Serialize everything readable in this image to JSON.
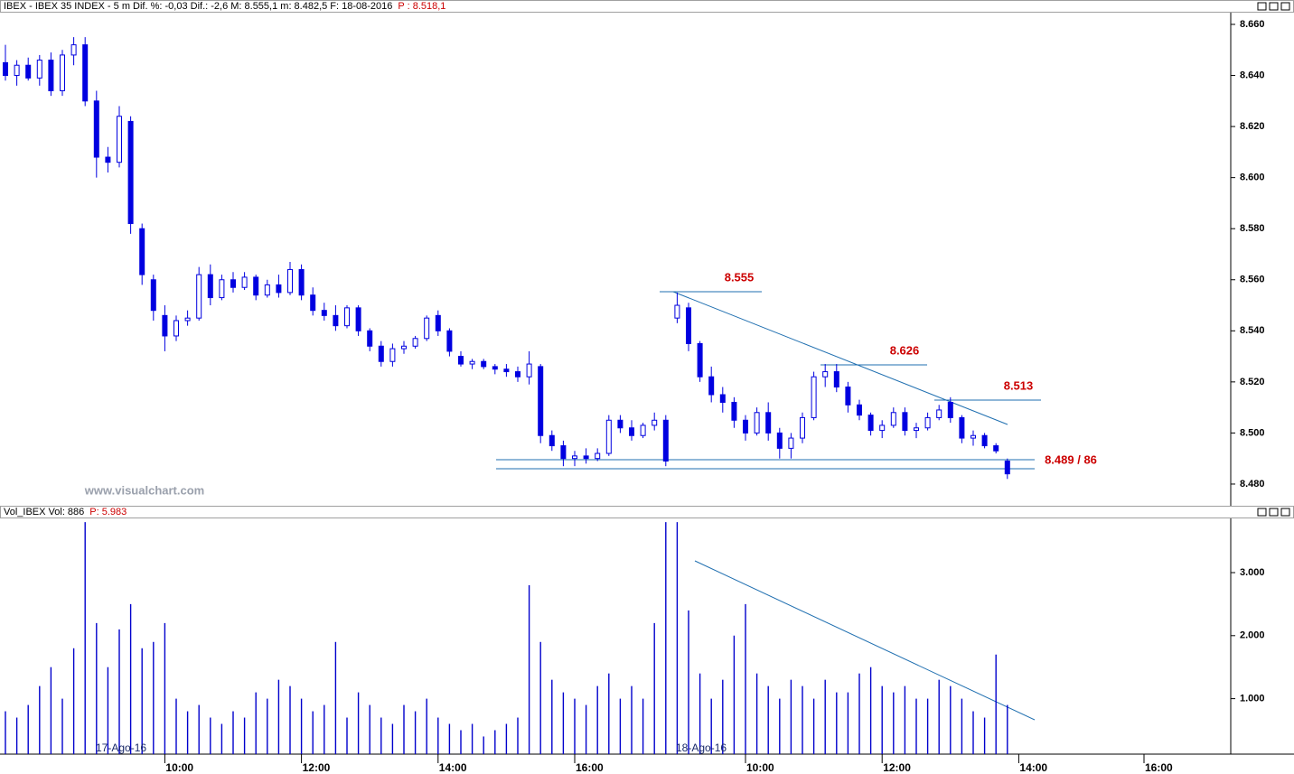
{
  "chart_data": [
    {
      "type": "candlestick",
      "title": "IBEX - IBEX 35 INDEX - 5 m  Dif. %: -0,03  Dif.: -2,6  M: 8.555,1  m: 8.482,5  F: 18-08-2016",
      "price_label": "P : 8.518,1",
      "watermark": "www.visualchart.com",
      "color": "#0000e0",
      "ylim": [
        8471.5,
        8665.3
      ],
      "yticks": [
        {
          "value": 8480,
          "label": "8.480"
        },
        {
          "value": 8500,
          "label": "8.500"
        },
        {
          "value": 8520,
          "label": "8.520"
        },
        {
          "value": 8540,
          "label": "8.540"
        },
        {
          "value": 8560,
          "label": "8.560"
        },
        {
          "value": 8580,
          "label": "8.580"
        },
        {
          "value": 8600,
          "label": "8.600"
        },
        {
          "value": 8620,
          "label": "8.620"
        },
        {
          "value": 8640,
          "label": "8.640"
        },
        {
          "value": 8660,
          "label": "8.660"
        }
      ],
      "annotations": [
        "8.555",
        "8.626",
        "8.513",
        "8.489 / 86"
      ],
      "candles": [
        [
          8645,
          8652,
          8638,
          8640
        ],
        [
          8640,
          8646,
          8636,
          8644
        ],
        [
          8644,
          8647,
          8638,
          8639
        ],
        [
          8639,
          8648,
          8636,
          8646
        ],
        [
          8646,
          8649,
          8632,
          8634
        ],
        [
          8634,
          8650,
          8632,
          8648
        ],
        [
          8648,
          8655,
          8644,
          8652
        ],
        [
          8652,
          8655,
          8628,
          8630
        ],
        [
          8630,
          8634,
          8600,
          8608
        ],
        [
          8608,
          8612,
          8602,
          8606
        ],
        [
          8606,
          8628,
          8604,
          8624
        ],
        [
          8622,
          8624,
          8578,
          8582
        ],
        [
          8580,
          8582,
          8558,
          8562
        ],
        [
          8560,
          8562,
          8544,
          8548
        ],
        [
          8546,
          8550,
          8532,
          8538
        ],
        [
          8538,
          8546,
          8536,
          8544
        ],
        [
          8544,
          8548,
          8542,
          8545
        ],
        [
          8545,
          8565,
          8544,
          8562
        ],
        [
          8562,
          8566,
          8550,
          8553
        ],
        [
          8553,
          8562,
          8552,
          8560
        ],
        [
          8560,
          8563,
          8555,
          8557
        ],
        [
          8557,
          8563,
          8556,
          8561
        ],
        [
          8561,
          8562,
          8552,
          8554
        ],
        [
          8554,
          8560,
          8553,
          8558
        ],
        [
          8558,
          8562,
          8553,
          8555
        ],
        [
          8555,
          8567,
          8554,
          8564
        ],
        [
          8564,
          8566,
          8552,
          8554
        ],
        [
          8554,
          8557,
          8546,
          8548
        ],
        [
          8548,
          8551,
          8544,
          8546
        ],
        [
          8546,
          8550,
          8540,
          8542
        ],
        [
          8542,
          8550,
          8541,
          8549
        ],
        [
          8549,
          8550,
          8538,
          8540
        ],
        [
          8540,
          8541,
          8532,
          8534
        ],
        [
          8534,
          8536,
          8526,
          8528
        ],
        [
          8528,
          8535,
          8526,
          8533
        ],
        [
          8533,
          8536,
          8531,
          8534
        ],
        [
          8534,
          8538,
          8533,
          8537
        ],
        [
          8537,
          8546,
          8536,
          8545
        ],
        [
          8546,
          8548,
          8538,
          8540
        ],
        [
          8540,
          8541,
          8530,
          8532
        ],
        [
          8530,
          8532,
          8526,
          8527
        ],
        [
          8527,
          8529,
          8525,
          8528
        ],
        [
          8528,
          8529,
          8525,
          8526
        ],
        [
          8526,
          8527,
          8523,
          8525
        ],
        [
          8525,
          8527,
          8522,
          8524
        ],
        [
          8524,
          8526,
          8520,
          8522
        ],
        [
          8522,
          8532,
          8519,
          8527
        ],
        [
          8526,
          8527,
          8496,
          8499
        ],
        [
          8499,
          8501,
          8493,
          8495
        ],
        [
          8495,
          8497,
          8487,
          8490
        ],
        [
          8490,
          8493,
          8487,
          8491
        ],
        [
          8491,
          8494,
          8488,
          8490
        ],
        [
          8490,
          8494,
          8489,
          8492
        ],
        [
          8492,
          8507,
          8491,
          8505
        ],
        [
          8505,
          8507,
          8500,
          8502
        ],
        [
          8502,
          8505,
          8497,
          8499
        ],
        [
          8499,
          8504,
          8498,
          8503
        ],
        [
          8503,
          8508,
          8501,
          8505
        ],
        [
          8505,
          8507,
          8487,
          8489
        ],
        [
          8545,
          8555,
          8543,
          8550
        ],
        [
          8549,
          8551,
          8532,
          8535
        ],
        [
          8535,
          8536,
          8520,
          8522
        ],
        [
          8522,
          8526,
          8512,
          8515
        ],
        [
          8515,
          8518,
          8508,
          8512
        ],
        [
          8512,
          8514,
          8502,
          8505
        ],
        [
          8505,
          8507,
          8497,
          8500
        ],
        [
          8500,
          8510,
          8499,
          8508
        ],
        [
          8508,
          8512,
          8497,
          8500
        ],
        [
          8500,
          8502,
          8490,
          8494
        ],
        [
          8494,
          8500,
          8490,
          8498
        ],
        [
          8498,
          8508,
          8496,
          8506
        ],
        [
          8506,
          8524,
          8505,
          8522
        ],
        [
          8522,
          8527,
          8518,
          8524
        ],
        [
          8524,
          8527,
          8516,
          8518
        ],
        [
          8518,
          8520,
          8508,
          8511
        ],
        [
          8511,
          8513,
          8505,
          8507
        ],
        [
          8507,
          8508,
          8499,
          8501
        ],
        [
          8501,
          8505,
          8498,
          8503
        ],
        [
          8503,
          8510,
          8502,
          8508
        ],
        [
          8508,
          8510,
          8499,
          8501
        ],
        [
          8501,
          8504,
          8498,
          8502
        ],
        [
          8502,
          8508,
          8501,
          8506
        ],
        [
          8506,
          8511,
          8505,
          8509
        ],
        [
          8512,
          8514,
          8504,
          8506
        ],
        [
          8506,
          8507,
          8496,
          8498
        ],
        [
          8498,
          8501,
          8495,
          8499
        ],
        [
          8499,
          8500,
          8494,
          8495
        ],
        [
          8495,
          8496,
          8492,
          8493
        ],
        [
          8489,
          8490,
          8482,
          8484
        ],
        null,
        null,
        null,
        null,
        null,
        null,
        null,
        null,
        null,
        null,
        null,
        null,
        null,
        null
      ]
    },
    {
      "type": "bar",
      "title": "Vol_IBEX Vol: 886",
      "price_label": "P: 5.983",
      "color": "#0000cc",
      "ylim": [
        120,
        3860
      ],
      "yticks": [
        {
          "value": 1000,
          "label": "1.000"
        },
        {
          "value": 2000,
          "label": "2.000"
        },
        {
          "value": 3000,
          "label": "3.000"
        }
      ],
      "annotations": [
        "17-Ago-16",
        "18-Ago-16"
      ],
      "categories": [
        null,
        null,
        null,
        null,
        null,
        null,
        null,
        null,
        null,
        null,
        null,
        null,
        null,
        null,
        "10:00",
        null,
        null,
        null,
        null,
        null,
        null,
        null,
        null,
        null,
        null,
        null,
        "12:00",
        null,
        null,
        null,
        null,
        null,
        null,
        null,
        null,
        null,
        null,
        null,
        "14:00",
        null,
        null,
        null,
        null,
        null,
        null,
        null,
        null,
        null,
        null,
        null,
        "16:00",
        null,
        null,
        null,
        null,
        null,
        null,
        null,
        null,
        null,
        null,
        null,
        null,
        null,
        null,
        "10:00",
        null,
        null,
        null,
        null,
        null,
        null,
        null,
        null,
        null,
        null,
        null,
        "12:00",
        null,
        null,
        null,
        null,
        null,
        null,
        null,
        null,
        null,
        null,
        null,
        "14:00",
        null,
        null,
        null,
        null,
        null,
        null,
        null,
        null,
        null,
        null,
        "16:00",
        null,
        null
      ],
      "values": [
        800,
        700,
        900,
        1200,
        1500,
        1000,
        1800,
        3800,
        2200,
        1500,
        2100,
        2500,
        1800,
        1900,
        2200,
        1000,
        800,
        900,
        700,
        600,
        800,
        700,
        1100,
        1000,
        1300,
        1200,
        1000,
        800,
        900,
        1900,
        700,
        1100,
        900,
        700,
        600,
        900,
        800,
        1000,
        700,
        600,
        500,
        600,
        400,
        500,
        600,
        700,
        2800,
        1900,
        1300,
        1100,
        1000,
        900,
        1200,
        1400,
        1000,
        1200,
        1000,
        2200,
        3800,
        3800,
        2400,
        1400,
        1000,
        1300,
        2000,
        2500,
        1400,
        1200,
        1000,
        1300,
        1200,
        1000,
        1300,
        1100,
        1100,
        1400,
        1500,
        1200,
        1100,
        1200,
        1000,
        1000,
        1300,
        1200,
        1000,
        800,
        700,
        1700,
        900,
        null,
        null,
        null,
        null,
        null,
        null,
        null,
        null,
        null,
        null,
        null,
        null,
        null,
        null
      ]
    }
  ]
}
